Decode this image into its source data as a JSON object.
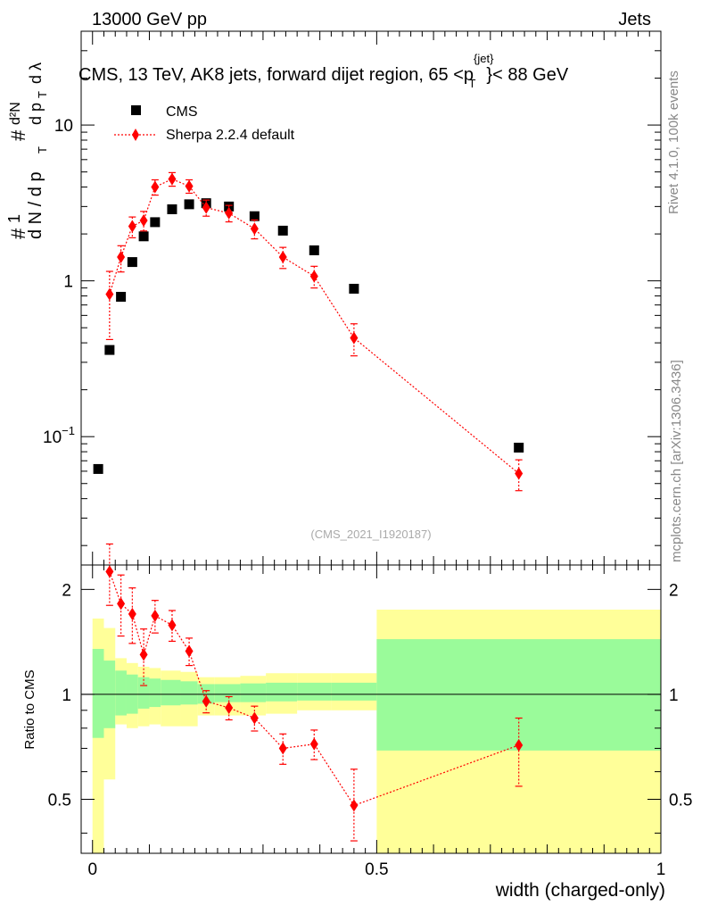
{
  "header": {
    "left": "13000 GeV pp",
    "right": "Jets"
  },
  "side_text": {
    "top": "Rivet 4.1.0,  100k events",
    "bottom": "mcplots.cern.ch [arXiv:1306.3436]"
  },
  "chart_data": [
    {
      "type": "scatter",
      "title": "CMS, 13 TeV, AK8 jets, forward dijet region, 65 <p_T^{jet}< 88 GeV",
      "title_parts": {
        "a": "CMS, 13 TeV, AK8 jets, forward dijet region, 65 <p",
        "sup": "{jet}",
        "sub": "T",
        "b": "}< 88 GeV"
      },
      "ylabel": "#1/dN/dp_T #d^2N/dp_T dλ",
      "ylabel_parts": {
        "hash": "#",
        "one": "1",
        "dn": "d N / d p",
        "t": "T",
        "d2n": "d²N",
        "dpt": "d p",
        "dl": "d λ"
      },
      "yscale": "log",
      "ylim": [
        0.015,
        40
      ],
      "xlim": [
        -0.02,
        1.0
      ],
      "yticks": [
        {
          "v": 10,
          "label": "10"
        },
        {
          "v": 1,
          "label": "1"
        },
        {
          "v": 0.1,
          "label": "10",
          "sup": "−1"
        }
      ],
      "watermark": "(CMS_2021_I1920187)",
      "legend": {
        "position": "top-left",
        "entries": [
          "CMS",
          "Sherpa 2.2.4 default"
        ]
      },
      "series": [
        {
          "name": "CMS",
          "marker": "square",
          "color": "#000000",
          "x": [
            0.01,
            0.03,
            0.05,
            0.07,
            0.09,
            0.11,
            0.14,
            0.17,
            0.2,
            0.24,
            0.285,
            0.335,
            0.39,
            0.46,
            0.75
          ],
          "y": [
            0.062,
            0.36,
            0.79,
            1.32,
            1.93,
            2.38,
            2.88,
            3.1,
            3.15,
            3.0,
            2.6,
            2.1,
            1.57,
            0.89,
            0.085
          ]
        },
        {
          "name": "Sherpa 2.2.4 default",
          "marker": "diamond",
          "color": "#ff0000",
          "x": [
            0.03,
            0.05,
            0.07,
            0.09,
            0.11,
            0.14,
            0.17,
            0.2,
            0.24,
            0.285,
            0.335,
            0.39,
            0.46,
            0.75
          ],
          "y": [
            0.82,
            1.42,
            2.24,
            2.44,
            4.0,
            4.5,
            4.05,
            2.95,
            2.72,
            2.16,
            1.42,
            1.07,
            0.43,
            0.058
          ],
          "yerr_low": [
            0.4,
            0.28,
            0.35,
            0.35,
            0.45,
            0.45,
            0.4,
            0.35,
            0.33,
            0.3,
            0.22,
            0.17,
            0.1,
            0.013
          ],
          "yerr_high": [
            0.33,
            0.26,
            0.33,
            0.35,
            0.45,
            0.45,
            0.4,
            0.35,
            0.33,
            0.3,
            0.22,
            0.17,
            0.1,
            0.013
          ]
        }
      ]
    },
    {
      "type": "scatter",
      "ylabel": "Ratio to CMS",
      "xlabel": "width (charged-only)",
      "xlim": [
        -0.02,
        1.0
      ],
      "ylim": [
        0.35,
        2.35
      ],
      "yscale": "log",
      "xticks": [
        {
          "v": 0,
          "label": "0"
        },
        {
          "v": 0.5,
          "label": "0.5"
        },
        {
          "v": 1,
          "label": "1"
        }
      ],
      "yticks": [
        {
          "v": 2,
          "label": "2"
        },
        {
          "v": 1,
          "label": "1"
        },
        {
          "v": 0.5,
          "label": "0.5"
        }
      ],
      "bands": {
        "edges": [
          0.0,
          0.02,
          0.04,
          0.06,
          0.08,
          0.1,
          0.12,
          0.155,
          0.185,
          0.215,
          0.26,
          0.305,
          0.36,
          0.42,
          0.5,
          1.0
        ],
        "inner_low": [
          0.75,
          0.8,
          0.87,
          0.88,
          0.91,
          0.92,
          0.93,
          0.935,
          0.94,
          0.95,
          0.95,
          0.955,
          0.96,
          0.96,
          0.69
        ],
        "inner_high": [
          1.35,
          1.25,
          1.17,
          1.14,
          1.12,
          1.11,
          1.1,
          1.09,
          1.07,
          1.07,
          1.075,
          1.08,
          1.08,
          1.08,
          1.44
        ],
        "outer_low": [
          0.35,
          0.57,
          0.82,
          0.8,
          0.81,
          0.82,
          0.81,
          0.81,
          0.87,
          0.87,
          0.87,
          0.88,
          0.9,
          0.9,
          0.35
        ],
        "outer_high": [
          1.65,
          1.55,
          1.27,
          1.23,
          1.2,
          1.19,
          1.17,
          1.16,
          1.12,
          1.12,
          1.13,
          1.15,
          1.15,
          1.15,
          1.75
        ],
        "inner_color": "#9afb9a",
        "outer_color": "#ffff99"
      },
      "series": [
        {
          "name": "Sherpa 2.2.4 default",
          "marker": "diamond",
          "color": "#ff0000",
          "x": [
            0.03,
            0.05,
            0.07,
            0.09,
            0.11,
            0.14,
            0.17,
            0.2,
            0.24,
            0.285,
            0.335,
            0.39,
            0.46,
            0.75
          ],
          "y": [
            2.25,
            1.82,
            1.7,
            1.3,
            1.68,
            1.58,
            1.33,
            0.955,
            0.915,
            0.855,
            0.7,
            0.72,
            0.48,
            0.715
          ],
          "yerr_low": [
            0.45,
            0.35,
            0.3,
            0.24,
            0.18,
            0.16,
            0.12,
            0.07,
            0.07,
            0.07,
            0.07,
            0.07,
            0.1,
            0.17
          ],
          "yerr_high": [
            0.45,
            0.38,
            0.32,
            0.24,
            0.18,
            0.16,
            0.12,
            0.07,
            0.07,
            0.07,
            0.07,
            0.07,
            0.13,
            0.14
          ]
        }
      ]
    }
  ]
}
